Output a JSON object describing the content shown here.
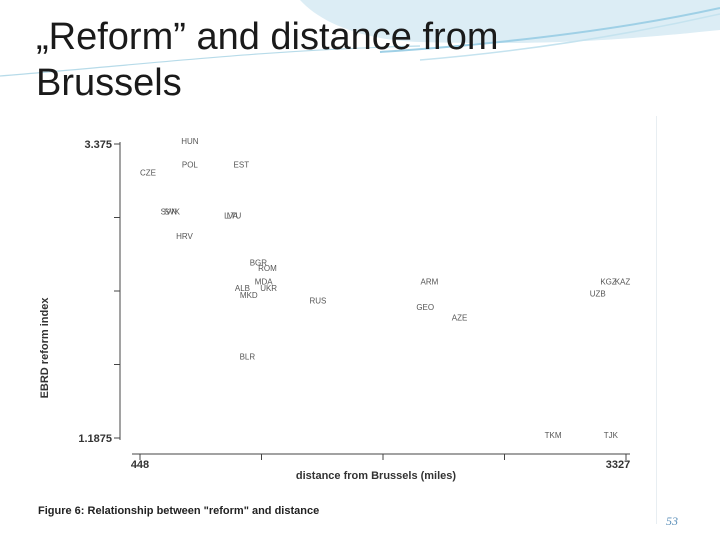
{
  "slide": {
    "title": "„Reform” and distance from Brussels",
    "slide_number": "53",
    "accent_color": "#4aa3c8"
  },
  "chart_data": {
    "type": "scatter",
    "title": "",
    "caption": "Figure 6: Relationship between \"reform\" and distance",
    "xlabel": "distance from Brussels (miles)",
    "ylabel": "EBRD reform index",
    "xlim": [
      448,
      3327
    ],
    "ylim": [
      1.1875,
      3.375
    ],
    "xtick_labels": [
      "448",
      "3327"
    ],
    "ytick_labels": [
      "3.375",
      "1.1875"
    ],
    "marker": "country-code text",
    "grid": false,
    "points": [
      {
        "label": "HUN",
        "x": 692,
        "y": 3.375
      },
      {
        "label": "POL",
        "x": 696,
        "y": 3.2
      },
      {
        "label": "EST",
        "x": 1002,
        "y": 3.2
      },
      {
        "label": "CZE",
        "x": 448,
        "y": 3.14
      },
      {
        "label": "SVK",
        "x": 590,
        "y": 2.85
      },
      {
        "label": "SVN",
        "x": 570,
        "y": 2.85
      },
      {
        "label": "LVA",
        "x": 946,
        "y": 2.82
      },
      {
        "label": "LTU",
        "x": 962,
        "y": 2.82
      },
      {
        "label": "HRV",
        "x": 662,
        "y": 2.67
      },
      {
        "label": "BGR",
        "x": 1098,
        "y": 2.47
      },
      {
        "label": "ROM",
        "x": 1148,
        "y": 2.43
      },
      {
        "label": "MDA",
        "x": 1128,
        "y": 2.33
      },
      {
        "label": "UKR",
        "x": 1160,
        "y": 2.28
      },
      {
        "label": "ALB",
        "x": 1010,
        "y": 2.28
      },
      {
        "label": "MKD",
        "x": 1040,
        "y": 2.23
      },
      {
        "label": "RUS",
        "x": 1452,
        "y": 2.19
      },
      {
        "label": "ARM",
        "x": 2110,
        "y": 2.33
      },
      {
        "label": "GEO",
        "x": 2085,
        "y": 2.14
      },
      {
        "label": "AZE",
        "x": 2295,
        "y": 2.06
      },
      {
        "label": "KGZ",
        "x": 3175,
        "y": 2.33
      },
      {
        "label": "KAZ",
        "x": 3260,
        "y": 2.33
      },
      {
        "label": "UZB",
        "x": 3112,
        "y": 2.24
      },
      {
        "label": "BLR",
        "x": 1038,
        "y": 1.77
      },
      {
        "label": "TKM",
        "x": 2845,
        "y": 1.1875
      },
      {
        "label": "TJK",
        "x": 3195,
        "y": 1.1875
      }
    ]
  }
}
